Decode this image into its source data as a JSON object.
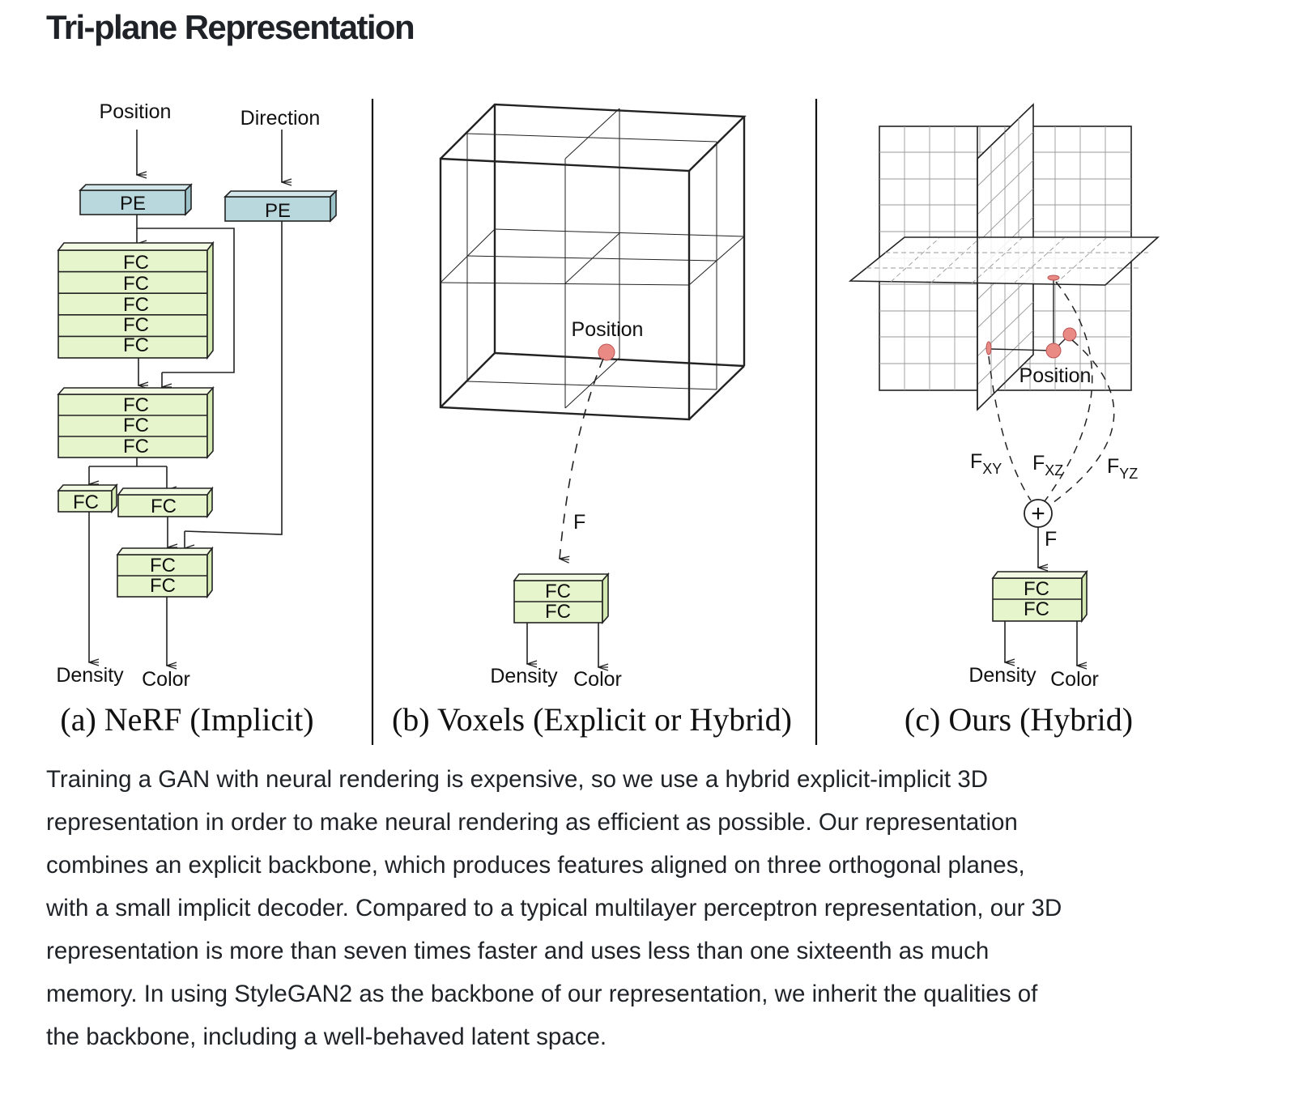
{
  "title": "Tri-plane Representation",
  "figure": {
    "panel_a": {
      "caption": "(a) NeRF (Implicit)",
      "input_position": "Position",
      "input_direction": "Direction",
      "pe_label": "PE",
      "fc_label": "FC",
      "output_density": "Density",
      "output_color": "Color"
    },
    "panel_b": {
      "caption": "(b) Voxels (Explicit or Hybrid)",
      "position_label": "Position",
      "feature_label": "F",
      "fc_label": "FC",
      "output_density": "Density",
      "output_color": "Color"
    },
    "panel_c": {
      "caption": "(c) Ours (Hybrid)",
      "position_label": "Position",
      "fxy_label": "F",
      "fxy_sub": "XY",
      "fxz_label": "F",
      "fxz_sub": "XZ",
      "fyz_label": "F",
      "fyz_sub": "YZ",
      "sum_symbol": "+",
      "feature_label": "F",
      "fc_label": "FC",
      "output_density": "Density",
      "output_color": "Color"
    },
    "colors": {
      "pe_fill": "#b9d8dd",
      "fc_fill": "#e6f5cc",
      "point_fill": "#e98a85"
    }
  },
  "paragraph_lines": [
    "Training a GAN with neural rendering is expensive, so we use a hybrid explicit-implicit 3D",
    "representation in order to make neural rendering as efficient as possible. Our representation",
    "combines an explicit backbone, which produces features aligned on three orthogonal planes,",
    "with a small implicit decoder. Compared to a typical multilayer perceptron representation, our 3D",
    "representation is more than seven times faster and uses less than one sixteenth as much",
    "memory. In using StyleGAN2 as the backbone of our representation, we inherit the qualities of",
    "the backbone, including a well-behaved latent space."
  ]
}
